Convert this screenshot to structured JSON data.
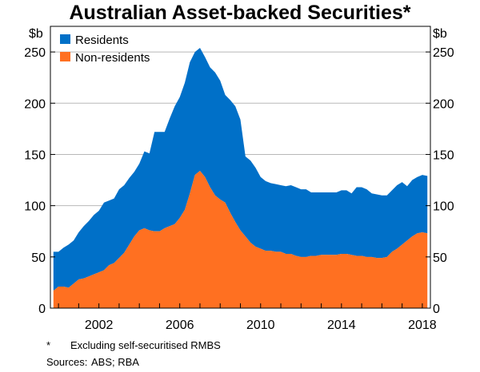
{
  "chart_data": {
    "type": "area",
    "title": "Australian Asset-backed Securities*",
    "y_unit_left": "$b",
    "y_unit_right": "$b",
    "ylim": [
      0,
      275
    ],
    "yticks": [
      0,
      50,
      100,
      150,
      200,
      250
    ],
    "xlim": [
      1999.6,
      2018.4
    ],
    "xticks": [
      2002,
      2006,
      2010,
      2014,
      2018
    ],
    "legend": {
      "placement": "top-left",
      "entries": [
        {
          "name": "Residents",
          "color": "#0070c8"
        },
        {
          "name": "Non-residents",
          "color": "#ff7021"
        }
      ]
    },
    "stacking": "stacked",
    "x": [
      1999.75,
      2000.0,
      2000.25,
      2000.5,
      2000.75,
      2001.0,
      2001.25,
      2001.5,
      2001.75,
      2002.0,
      2002.25,
      2002.5,
      2002.75,
      2003.0,
      2003.25,
      2003.5,
      2003.75,
      2004.0,
      2004.25,
      2004.5,
      2004.75,
      2005.0,
      2005.25,
      2005.5,
      2005.75,
      2006.0,
      2006.25,
      2006.5,
      2006.75,
      2007.0,
      2007.25,
      2007.5,
      2007.75,
      2008.0,
      2008.25,
      2008.5,
      2008.75,
      2009.0,
      2009.25,
      2009.5,
      2009.75,
      2010.0,
      2010.25,
      2010.5,
      2010.75,
      2011.0,
      2011.25,
      2011.5,
      2011.75,
      2012.0,
      2012.25,
      2012.5,
      2012.75,
      2013.0,
      2013.25,
      2013.5,
      2013.75,
      2014.0,
      2014.25,
      2014.5,
      2014.75,
      2015.0,
      2015.25,
      2015.5,
      2015.75,
      2016.0,
      2016.25,
      2016.5,
      2016.75,
      2017.0,
      2017.25,
      2017.5,
      2017.75,
      2018.0,
      2018.25
    ],
    "series": [
      {
        "name": "Non-residents",
        "values": [
          17,
          21,
          21,
          20,
          24,
          28,
          29,
          31,
          33,
          35,
          37,
          42,
          44,
          49,
          54,
          62,
          70,
          76,
          78,
          76,
          75,
          75,
          78,
          80,
          82,
          88,
          96,
          112,
          130,
          134,
          128,
          118,
          110,
          106,
          103,
          93,
          84,
          76,
          70,
          64,
          60,
          58,
          56,
          56,
          55,
          55,
          53,
          53,
          51,
          50,
          50,
          51,
          51,
          52,
          52,
          52,
          52,
          53,
          53,
          52,
          51,
          51,
          50,
          50,
          49,
          49,
          50,
          55,
          58,
          62,
          66,
          70,
          73,
          74,
          73
        ]
      },
      {
        "name": "Residents",
        "values": [
          38,
          34,
          38,
          42,
          42,
          46,
          51,
          54,
          58,
          60,
          66,
          63,
          63,
          67,
          66,
          65,
          63,
          65,
          75,
          75,
          97,
          97,
          94,
          105,
          115,
          118,
          124,
          128,
          120,
          120,
          117,
          117,
          120,
          116,
          105,
          110,
          113,
          108,
          78,
          80,
          77,
          70,
          68,
          66,
          66,
          65,
          66,
          67,
          67,
          66,
          66,
          62,
          62,
          61,
          61,
          61,
          61,
          62,
          62,
          60,
          67,
          67,
          66,
          62,
          62,
          61,
          60,
          60,
          62,
          61,
          53,
          55,
          55,
          56,
          56
        ]
      }
    ]
  },
  "notes": {
    "footnote_mark": "*",
    "footnote_text": "Excluding self-securitised RMBS",
    "sources_label": "Sources:",
    "sources_text": "ABS; RBA"
  }
}
